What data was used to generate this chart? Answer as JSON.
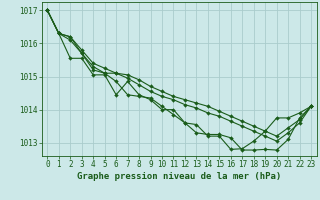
{
  "title": "Graphe pression niveau de la mer (hPa)",
  "background_color": "#cce8e8",
  "grid_color": "#aacccc",
  "line_color": "#1a5c1a",
  "xlim": [
    -0.5,
    23.5
  ],
  "ylim": [
    1012.6,
    1017.25
  ],
  "yticks": [
    1013,
    1014,
    1015,
    1016,
    1017
  ],
  "xticks": [
    0,
    1,
    2,
    3,
    4,
    5,
    6,
    7,
    8,
    9,
    10,
    11,
    12,
    13,
    14,
    15,
    16,
    17,
    18,
    19,
    20,
    21,
    22,
    23
  ],
  "series1_x": [
    0,
    1,
    2,
    3,
    4,
    5,
    6,
    7,
    8,
    9,
    10,
    11,
    12,
    13,
    14,
    15,
    16,
    17,
    18,
    19,
    20,
    21,
    22,
    23
  ],
  "series1_y": [
    1017.0,
    1016.3,
    1016.2,
    1015.8,
    1015.4,
    1015.25,
    1015.1,
    1015.05,
    1014.9,
    1014.7,
    1014.55,
    1014.4,
    1014.3,
    1014.2,
    1014.1,
    1013.95,
    1013.8,
    1013.65,
    1013.5,
    1013.35,
    1013.2,
    1013.45,
    1013.7,
    1014.1
  ],
  "series2_x": [
    0,
    1,
    2,
    3,
    4,
    5,
    6,
    7,
    8,
    9,
    10,
    11,
    12,
    13,
    14,
    15,
    16,
    17,
    18,
    19,
    20,
    21,
    22,
    23
  ],
  "series2_y": [
    1017.0,
    1016.3,
    1016.2,
    1015.7,
    1015.3,
    1015.1,
    1015.1,
    1014.95,
    1014.75,
    1014.55,
    1014.4,
    1014.3,
    1014.15,
    1014.05,
    1013.9,
    1013.8,
    1013.65,
    1013.5,
    1013.35,
    1013.2,
    1013.05,
    1013.3,
    1013.6,
    1014.1
  ],
  "series3_x": [
    0,
    1,
    2,
    3,
    4,
    5,
    6,
    7,
    8,
    9,
    10,
    11,
    12,
    13,
    14,
    15,
    16,
    17,
    18,
    19,
    20,
    21,
    22,
    23
  ],
  "series3_y": [
    1017.0,
    1016.3,
    1015.55,
    1015.55,
    1015.05,
    1015.05,
    1014.45,
    1014.85,
    1014.45,
    1014.3,
    1014.0,
    1014.0,
    1013.6,
    1013.55,
    1013.2,
    1013.2,
    1012.8,
    1012.82,
    1013.05,
    1013.35,
    1013.75,
    1013.75,
    1013.9,
    1014.1
  ],
  "series4_x": [
    0,
    1,
    2,
    3,
    4,
    5,
    6,
    7,
    8,
    9,
    10,
    11,
    12,
    13,
    14,
    15,
    16,
    17,
    18,
    19,
    20,
    21,
    22,
    23
  ],
  "series4_y": [
    1017.0,
    1016.3,
    1016.1,
    1015.7,
    1015.2,
    1015.1,
    1014.85,
    1014.45,
    1014.4,
    1014.35,
    1014.1,
    1013.85,
    1013.6,
    1013.3,
    1013.25,
    1013.25,
    1013.15,
    1012.78,
    1012.78,
    1012.8,
    1012.78,
    1013.1,
    1013.75,
    1014.1
  ],
  "marker": "D",
  "markersize": 2.0,
  "linewidth": 0.8,
  "tick_fontsize": 5.5,
  "label_fontsize": 6.5
}
